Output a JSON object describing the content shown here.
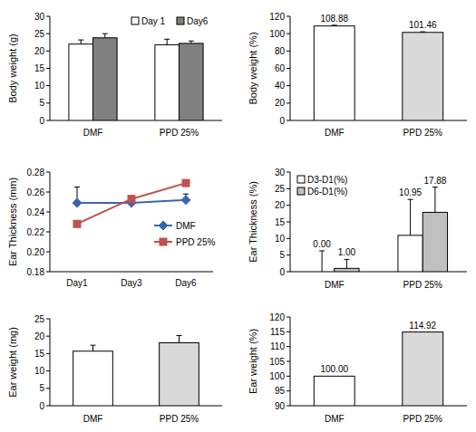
{
  "chart_data": [
    {
      "type": "bar",
      "ylabel": "Body weight (g)",
      "categories": [
        "DMF",
        "PPD 25%"
      ],
      "series": [
        {
          "name": "Day 1",
          "color": "#ffffff",
          "values": [
            22,
            21.8
          ],
          "errors": [
            1.2,
            1.6
          ]
        },
        {
          "name": "Day6",
          "color": "#808080",
          "values": [
            23.8,
            22.2
          ],
          "errors": [
            1.2,
            0.7
          ]
        }
      ],
      "ylim": [
        0,
        30
      ],
      "yticks": [
        0,
        5,
        10,
        15,
        20,
        25,
        30
      ],
      "legend": "upper right"
    },
    {
      "type": "bar",
      "ylabel": "Body weight (%)",
      "categories": [
        "DMF",
        "PPD 25%"
      ],
      "values": [
        108.88,
        101.46
      ],
      "errors": [
        0.8,
        0.7
      ],
      "colors": [
        "#ffffff",
        "#d9d9d9"
      ],
      "ylim": [
        0,
        120
      ],
      "yticks": [
        0,
        20,
        40,
        60,
        80,
        100,
        120
      ],
      "data_labels": true
    },
    {
      "type": "line",
      "ylabel": "Ear Thickness (mm)",
      "categories": [
        "Day1",
        "Day3",
        "Day6"
      ],
      "series": [
        {
          "name": "DMF",
          "color": "#3a66b0",
          "marker": "diamond",
          "values": [
            0.249,
            0.249,
            0.252
          ],
          "errors": [
            0.016,
            0.003,
            0.006
          ]
        },
        {
          "name": "PPD 25%",
          "color": "#c0504d",
          "marker": "square",
          "values": [
            0.228,
            0.253,
            0.269
          ]
        }
      ],
      "ylim": [
        0.18,
        0.28
      ],
      "yticks": [
        0.18,
        {
          "value": 0.2,
          "label": "0.20"
        },
        0.22,
        0.24,
        0.26,
        0.28
      ],
      "legend": "right"
    },
    {
      "type": "bar",
      "ylabel": "Ear Thickness (%)",
      "categories": [
        "DMF",
        "PPD 25%"
      ],
      "series": [
        {
          "name": "D3-D1(%)",
          "color": "#ffffff",
          "values": [
            0,
            10.95
          ],
          "value_labels": [
            "0.00",
            "10.95"
          ],
          "errors": [
            6.3,
            10.8
          ]
        },
        {
          "name": "D6-D1(%)",
          "color": "#c0c0c0",
          "values": [
            1,
            17.88
          ],
          "value_labels": [
            "1.00",
            "17.88"
          ],
          "errors": [
            2.7,
            7.6
          ]
        }
      ],
      "ylim": [
        0,
        30
      ],
      "yticks": [
        0,
        5,
        10,
        15,
        20,
        25,
        30
      ],
      "data_labels": true,
      "legend": "upper left"
    },
    {
      "type": "bar",
      "ylabel": "Ear weight (mg)",
      "categories": [
        "DMF",
        "PPD 25%"
      ],
      "values": [
        15.7,
        18.1
      ],
      "errors": [
        1.7,
        2.1
      ],
      "colors": [
        "#ffffff",
        "#d9d9d9"
      ],
      "ylim": [
        0,
        25
      ],
      "yticks": [
        0,
        5,
        10,
        15,
        20,
        25
      ]
    },
    {
      "type": "bar",
      "ylabel": "Ear weight (%)",
      "categories": [
        "DMF",
        "PPD 25%"
      ],
      "values": [
        100,
        114.92
      ],
      "value_labels": [
        "100.00",
        "114.92"
      ],
      "colors": [
        "#ffffff",
        "#d9d9d9"
      ],
      "ylim": [
        90,
        120
      ],
      "yticks": [
        90,
        95,
        100,
        105,
        110,
        115,
        120
      ],
      "data_labels": true
    }
  ]
}
